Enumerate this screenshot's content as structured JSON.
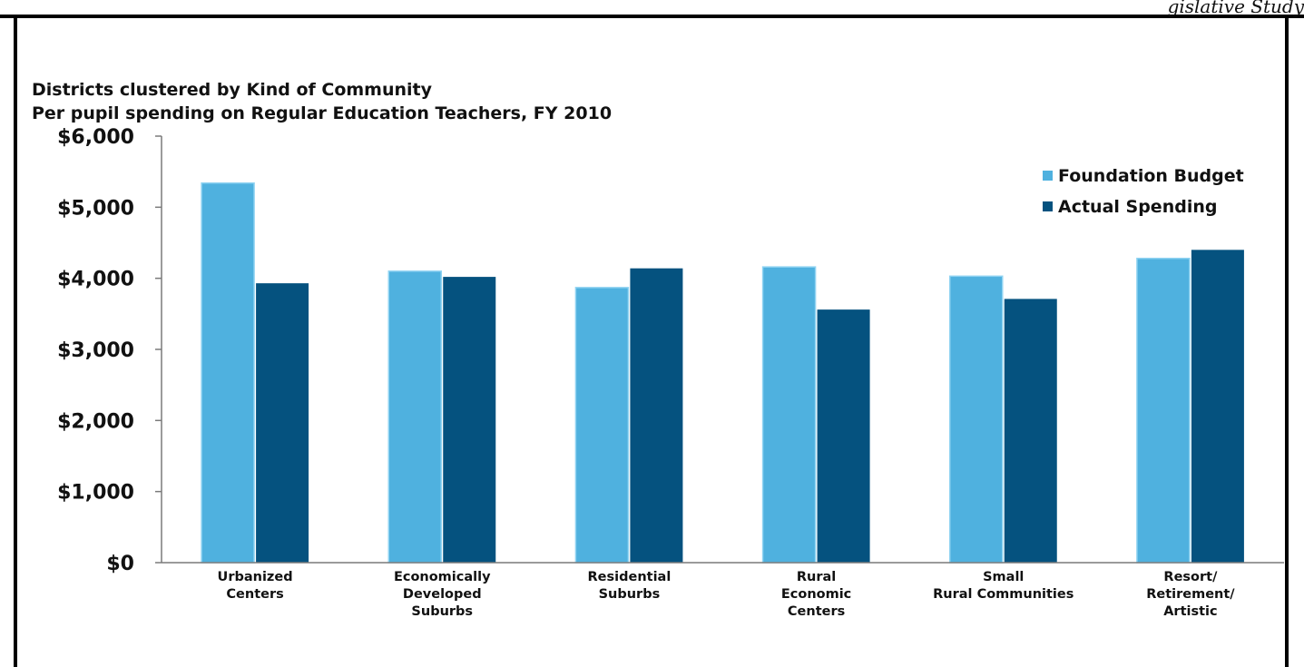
{
  "corner_fragment": "gislative Study",
  "chart_data": {
    "type": "bar",
    "title": "Districts clustered by Kind of Community",
    "subtitle": "Per pupil spending on Regular Education Teachers, FY 2010",
    "categories": [
      [
        "Urbanized",
        "Centers"
      ],
      [
        "Economically",
        "Developed",
        "Suburbs"
      ],
      [
        "Residential",
        "Suburbs"
      ],
      [
        "Rural",
        "Economic",
        "Centers"
      ],
      [
        "Small",
        "Rural Communities"
      ],
      [
        "Resort/",
        "Retirement/",
        "Artistic"
      ]
    ],
    "series": [
      {
        "name": "Foundation Budget",
        "color": "#4fb1df",
        "values": [
          5340,
          4100,
          3870,
          4160,
          4030,
          4280
        ]
      },
      {
        "name": "Actual Spending",
        "color": "#05527f",
        "values": [
          3930,
          4020,
          4140,
          3560,
          3710,
          4400
        ]
      }
    ],
    "ylim": [
      0,
      6000
    ],
    "yticks": [
      0,
      1000,
      2000,
      3000,
      4000,
      5000,
      6000
    ],
    "ytick_labels": [
      "$0",
      "$1,000",
      "$2,000",
      "$3,000",
      "$4,000",
      "$5,000",
      "$6,000"
    ],
    "grid": false,
    "legend_position": "top-right"
  }
}
